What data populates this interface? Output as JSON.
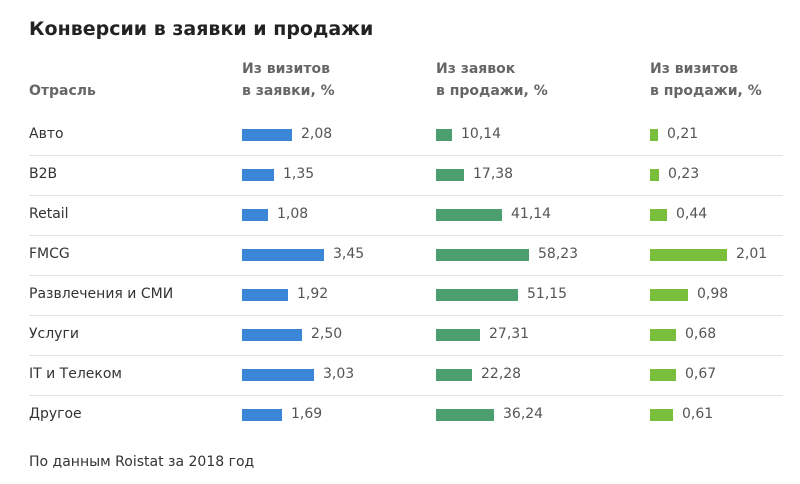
{
  "title": "Конверсии в заявки и продажи",
  "footer": "По данным Roistat за 2018 год",
  "colors": {
    "visits_to_leads": "#3b86d6",
    "leads_to_sales": "#4c9e6e",
    "visits_to_sales": "#79bf3c"
  },
  "chart_data": {
    "type": "bar",
    "title": "Конверсии в заявки и продажи",
    "category_header": "Отрасль",
    "categories": [
      "Авто",
      "B2B",
      "Retail",
      "FMCG",
      "Развлечения и СМИ",
      "Услуги",
      "IT и Телеком",
      "Другое"
    ],
    "series": [
      {
        "name_lines": [
          "Из визитов",
          "в заявки, %"
        ],
        "values": [
          "2,08",
          "1,35",
          "1,08",
          "3,45",
          "1,92",
          "2,50",
          "3,03",
          "1,69"
        ]
      },
      {
        "name_lines": [
          "Из заявок",
          "в продажи, %"
        ],
        "values": [
          "10,14",
          "17,38",
          "41,14",
          "58,23",
          "51,15",
          "27,31",
          "22,28",
          "36,24"
        ]
      },
      {
        "name_lines": [
          "Из визитов",
          "в продажи, %"
        ],
        "values": [
          "0,21",
          "0,23",
          "0,44",
          "2,01",
          "0,98",
          "0,68",
          "0,67",
          "0,61"
        ]
      }
    ],
    "orientation": "horizontal",
    "legend": "column headers"
  }
}
